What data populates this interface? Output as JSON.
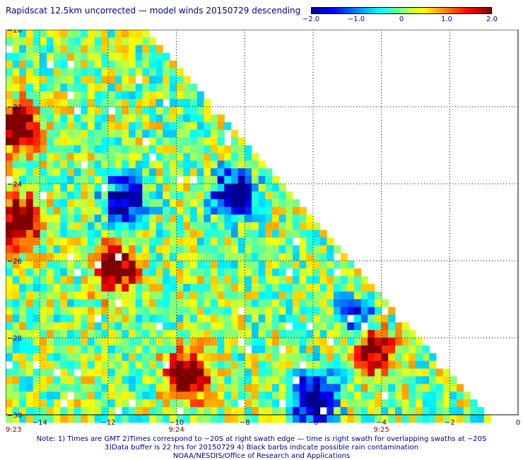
{
  "title": "Rapidscat 12.5km uncorrected — model winds 20150729 descending",
  "colorbar": {
    "min": -2.0,
    "max": 2.0,
    "ticks": [
      "−2.0",
      "−1.0",
      "0",
      "1.0",
      "2.0"
    ],
    "tick_values": [
      -2.0,
      -1.0,
      0,
      1.0,
      2.0
    ]
  },
  "axes": {
    "x_range": [
      -15,
      0
    ],
    "y_range": [
      -30,
      -20
    ],
    "x_ticks": [
      -14,
      -12,
      -10,
      -8,
      -6,
      -4,
      -2,
      0
    ],
    "x_tick_labels": [
      "−14",
      "−12",
      "−10",
      "−8",
      "−6",
      "−4",
      "−2",
      "0"
    ],
    "y_ticks": [
      -20,
      -22,
      -24,
      -26,
      -28,
      -30
    ],
    "y_tick_labels": [
      "−20",
      "−22",
      "−24",
      "−26",
      "−28",
      "−30"
    ],
    "grid": "dotted"
  },
  "times": [
    {
      "label": "9:23",
      "x": -15
    },
    {
      "label": "9:24",
      "x": -10
    },
    {
      "label": "9:25",
      "x": -4
    }
  ],
  "notes": {
    "line1": "Note: 1) Times are GMT 2)Times correspond to ~20S at right swath edge — time is right swath for overlapping swaths at ~20S",
    "line2": "3)Data buffer is 22 hrs for 20150729 4) Black barbs indicate possible rain contamination",
    "line3": "NOAA/NESDIS/Office of Research and Applications"
  },
  "chart_data": {
    "type": "heatmap",
    "variable": "wind speed difference (scatterometer − model)",
    "cell_size_km": 12.5,
    "swath_edge": [
      {
        "lon": -11.0,
        "lat": -20.0
      },
      {
        "lon": -1.0,
        "lat": -30.0
      }
    ],
    "high_anomalies": [
      {
        "lon": -14.7,
        "lat": -22.5,
        "value": 2.0
      },
      {
        "lon": -14.6,
        "lat": -25.0,
        "value": 2.0
      },
      {
        "lon": -11.8,
        "lat": -26.2,
        "value": 2.0
      },
      {
        "lon": -9.7,
        "lat": -29.0,
        "value": 2.0
      },
      {
        "lon": -4.3,
        "lat": -28.3,
        "value": 1.8
      }
    ],
    "low_anomalies": [
      {
        "lon": -11.5,
        "lat": -24.4,
        "value": -1.6
      },
      {
        "lon": -8.3,
        "lat": -24.3,
        "value": -1.8
      },
      {
        "lon": -6.0,
        "lat": -29.6,
        "value": -2.0
      },
      {
        "lon": -4.7,
        "lat": -27.6,
        "value": -1.2
      }
    ]
  }
}
